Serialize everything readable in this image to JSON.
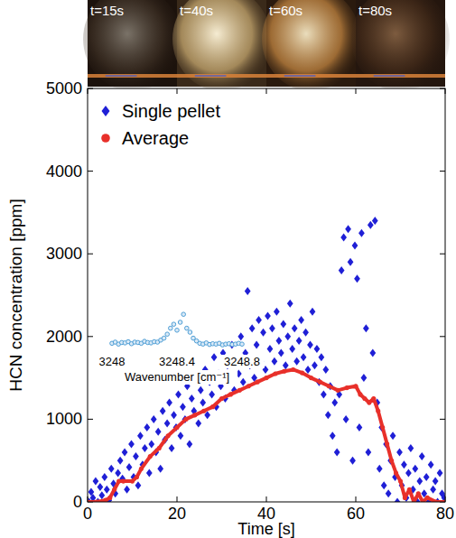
{
  "photo_strip": {
    "labels": [
      "t=15s",
      "t=40s",
      "t=60s",
      "t=80s"
    ]
  },
  "chart_data": [
    {
      "type": "scatter",
      "x_label": "Time [s]",
      "y_label": "HCN concentration [ppm]",
      "xlim": [
        0,
        80
      ],
      "xticks": [
        0,
        20,
        40,
        60,
        80
      ],
      "ylim": [
        0,
        5000
      ],
      "yticks": [
        0,
        1000,
        2000,
        3000,
        4000,
        5000
      ],
      "legend": "upper left",
      "series": [
        {
          "name": "Single pellet",
          "type": "scatter",
          "marker": "diamond",
          "color": "#1f1fd6",
          "x": [
            0.3,
            0.8,
            1.2,
            1.8,
            2.3,
            2.8,
            3.2,
            3.8,
            4.3,
            4.8,
            5.3,
            5.8,
            6.2,
            6.8,
            7.3,
            7.8,
            8.3,
            8.8,
            9.3,
            9.8,
            10.3,
            10.8,
            11.3,
            11.8,
            12.3,
            12.8,
            13.3,
            13.8,
            14.3,
            14.8,
            15.3,
            15.8,
            16.3,
            16.8,
            17.3,
            17.8,
            18.3,
            18.8,
            19.3,
            19.8,
            20.3,
            20.8,
            21.3,
            21.8,
            22.3,
            22.8,
            23.3,
            23.8,
            24.3,
            24.8,
            25.3,
            25.8,
            26.3,
            26.8,
            27.3,
            27.8,
            28.3,
            28.8,
            29.3,
            29.8,
            30.3,
            30.8,
            31.3,
            31.8,
            32.3,
            32.8,
            33.3,
            33.8,
            34.3,
            34.8,
            35.3,
            35.8,
            36.3,
            36.8,
            37.3,
            37.8,
            38.3,
            38.8,
            39.3,
            39.8,
            40.3,
            40.8,
            41.3,
            41.8,
            42.3,
            42.8,
            43.3,
            43.8,
            44.3,
            44.8,
            45.3,
            45.8,
            46.3,
            46.8,
            47.3,
            47.8,
            48.3,
            48.8,
            49.3,
            49.8,
            50.3,
            50.8,
            51.3,
            51.8,
            52.3,
            52.8,
            53.3,
            53.8,
            54.3,
            54.8,
            55.3,
            55.8,
            56.3,
            56.8,
            57.3,
            57.8,
            58.3,
            58.8,
            59.3,
            59.8,
            60.3,
            60.8,
            61.3,
            61.8,
            62.3,
            62.8,
            63.3,
            63.8,
            64.3,
            64.8,
            65.3,
            65.8,
            66.3,
            66.8,
            67.3,
            67.8,
            68.3,
            68.8,
            69.3,
            69.8,
            70.3,
            70.8,
            71.3,
            71.8,
            72.3,
            72.8,
            73.3,
            73.8,
            74.3,
            74.8,
            75.3,
            75.8,
            76.3,
            76.8,
            77.3,
            77.8,
            78.3,
            78.8,
            79.3,
            79.8
          ],
          "values": [
            0,
            120,
            50,
            250,
            0,
            180,
            80,
            300,
            150,
            20,
            400,
            220,
            100,
            350,
            500,
            280,
            600,
            150,
            420,
            700,
            300,
            550,
            200,
            800,
            450,
            650,
            900,
            350,
            700,
            1000,
            600,
            850,
            400,
            1100,
            750,
            950,
            1200,
            650,
            1050,
            900,
            1300,
            800,
            1150,
            1000,
            1400,
            700,
            1250,
            1100,
            1500,
            950,
            1350,
            1200,
            1600,
            1050,
            1450,
            1300,
            1750,
            1150,
            1550,
            1400,
            1800,
            1250,
            1650,
            1500,
            1900,
            1350,
            1700,
            1550,
            2000,
            1450,
            1800,
            2550,
            1650,
            2100,
            1500,
            1900,
            2200,
            1700,
            2050,
            1600,
            2250,
            1850,
            2100,
            1700,
            2300,
            1950,
            1800,
            2150,
            1650,
            2000,
            2400,
            1850,
            2100,
            1700,
            1950,
            2200,
            1750,
            2050,
            1600,
            1900,
            2300,
            1650,
            1850,
            1450,
            1750,
            1300,
            1600,
            1050,
            1400,
            800,
            1200,
            600,
            1300,
            2800,
            3200,
            1000,
            3300,
            2900,
            500,
            3100,
            2700,
            900,
            3250,
            1500,
            2100,
            600,
            3350,
            1800,
            3400,
            1200,
            400,
            900,
            200,
            700,
            100,
            500,
            800,
            300,
            0,
            600,
            200,
            450,
            50,
            350,
            650,
            150,
            400,
            0,
            250,
            550,
            100,
            300,
            0,
            450,
            150,
            250,
            0,
            350,
            100,
            50
          ]
        },
        {
          "name": "Average",
          "type": "line",
          "marker": "circle",
          "color": "#e8302a",
          "x": [
            0,
            2,
            4,
            5,
            6,
            7,
            8,
            10,
            11,
            12,
            14,
            16,
            18,
            20,
            22,
            24,
            26,
            28,
            30,
            32,
            34,
            36,
            38,
            40,
            42,
            44,
            46,
            48,
            50,
            52,
            54,
            56,
            58,
            60,
            61,
            62,
            63,
            64,
            65,
            66,
            67,
            68,
            69,
            70,
            71,
            72,
            73,
            74,
            75,
            76,
            78,
            80
          ],
          "values": [
            0,
            0,
            20,
            50,
            150,
            250,
            250,
            250,
            300,
            400,
            550,
            650,
            800,
            900,
            1000,
            1050,
            1100,
            1150,
            1250,
            1300,
            1350,
            1400,
            1450,
            1500,
            1550,
            1580,
            1600,
            1560,
            1500,
            1450,
            1400,
            1350,
            1380,
            1400,
            1300,
            1250,
            1200,
            1250,
            1100,
            900,
            700,
            500,
            350,
            250,
            50,
            150,
            0,
            100,
            0,
            50,
            0,
            0
          ]
        }
      ]
    },
    {
      "type": "scatter",
      "x_label": "Wavenumber [cm⁻¹]",
      "xlim": [
        3248,
        3248.8
      ],
      "xticks": [
        3248,
        3248.4,
        3248.8
      ],
      "ylim": [
        0,
        1
      ],
      "tick_labels": "x",
      "series": [
        {
          "marker": "circle",
          "color": "#4f9fd6",
          "x": [
            3248,
            3248.02,
            3248.04,
            3248.06,
            3248.08,
            3248.1,
            3248.12,
            3248.14,
            3248.16,
            3248.18,
            3248.2,
            3248.22,
            3248.24,
            3248.26,
            3248.28,
            3248.3,
            3248.32,
            3248.34,
            3248.36,
            3248.38,
            3248.4,
            3248.42,
            3248.44,
            3248.46,
            3248.48,
            3248.5,
            3248.52,
            3248.54,
            3248.56,
            3248.58,
            3248.6,
            3248.62,
            3248.64,
            3248.66,
            3248.68,
            3248.7,
            3248.72,
            3248.74,
            3248.76,
            3248.78,
            3248.8
          ],
          "values": [
            0.22,
            0.25,
            0.2,
            0.24,
            0.23,
            0.26,
            0.21,
            0.25,
            0.24,
            0.22,
            0.27,
            0.24,
            0.23,
            0.26,
            0.25,
            0.3,
            0.35,
            0.45,
            0.6,
            0.7,
            0.55,
            0.75,
            0.95,
            0.6,
            0.5,
            0.35,
            0.28,
            0.22,
            0.2,
            0.23,
            0.19,
            0.21,
            0.2,
            0.22,
            0.18,
            0.2,
            0.21,
            0.19,
            0.2,
            0.22,
            0.2
          ]
        }
      ]
    }
  ]
}
